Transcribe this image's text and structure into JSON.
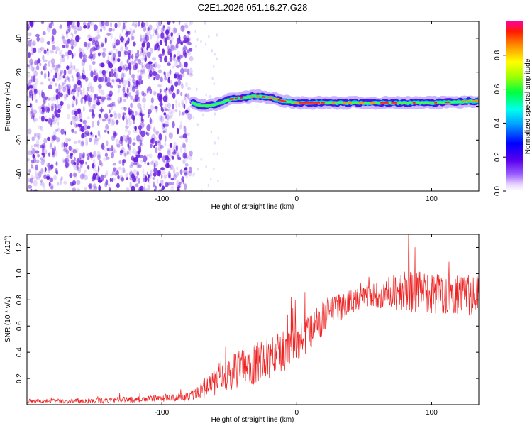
{
  "title": "C2E1.2026.051.16.27.G28",
  "colors": {
    "snr_line": "#ee2222",
    "spectro_dot": "#6a1fe0"
  },
  "chart_data": [
    {
      "type": "heatmap",
      "name": "spectrogram",
      "xlabel": "Height of straight line (km)",
      "ylabel": "Frequency (Hz)",
      "xlim": [
        -200,
        135
      ],
      "ylim": [
        -50,
        50
      ],
      "xticks": [
        -100,
        0,
        100
      ],
      "xtick_labels": [
        "-100",
        "0",
        "100"
      ],
      "yticks": [
        -40,
        -20,
        0,
        20,
        40
      ],
      "ytick_labels": [
        "-40",
        "-20",
        "0",
        "20",
        "40"
      ],
      "noise_region_km": [
        -200,
        -78
      ],
      "signal_trace": [
        {
          "x": -78,
          "y": 2
        },
        {
          "x": -70,
          "y": 0
        },
        {
          "x": -60,
          "y": 1
        },
        {
          "x": -50,
          "y": 4
        },
        {
          "x": -40,
          "y": 5
        },
        {
          "x": -30,
          "y": 6
        },
        {
          "x": -20,
          "y": 5
        },
        {
          "x": -10,
          "y": 3
        },
        {
          "x": 0,
          "y": 2
        },
        {
          "x": 20,
          "y": 2
        },
        {
          "x": 50,
          "y": 2
        },
        {
          "x": 80,
          "y": 2
        },
        {
          "x": 100,
          "y": 2
        },
        {
          "x": 135,
          "y": 3
        }
      ],
      "colorbar": {
        "label": "Normalized spectral amplitude",
        "ticks": [
          0.0,
          0.2,
          0.4,
          0.6,
          0.8
        ],
        "tick_labels": [
          "0.0",
          "0.2",
          "0.4",
          "0.6",
          "0.8"
        ],
        "range": [
          0,
          1
        ]
      }
    },
    {
      "type": "line",
      "name": "snr",
      "xlabel": "Height of straight line (km)",
      "ylabel": "SNR (10 * v/v)",
      "yscale_label": "(x10",
      "yscale_exponent": "4",
      "yscale_close": ")",
      "xlim": [
        -200,
        135
      ],
      "ylim": [
        0,
        1.3
      ],
      "xticks": [
        -100,
        0,
        100
      ],
      "xtick_labels": [
        "-100",
        "0",
        "100"
      ],
      "yticks": [
        0.2,
        0.4,
        0.6,
        0.8,
        1.0,
        1.2
      ],
      "ytick_labels": [
        "0.2",
        "0.4",
        "0.6",
        "0.8",
        "1.0",
        "1.2"
      ],
      "series": [
        {
          "name": "SNR",
          "envelope": [
            {
              "x": -200,
              "y": 0.03
            },
            {
              "x": -150,
              "y": 0.03
            },
            {
              "x": -100,
              "y": 0.05
            },
            {
              "x": -80,
              "y": 0.06
            },
            {
              "x": -70,
              "y": 0.12
            },
            {
              "x": -60,
              "y": 0.2
            },
            {
              "x": -45,
              "y": 0.28
            },
            {
              "x": -30,
              "y": 0.33
            },
            {
              "x": -15,
              "y": 0.4
            },
            {
              "x": 0,
              "y": 0.48
            },
            {
              "x": 15,
              "y": 0.62
            },
            {
              "x": 30,
              "y": 0.75
            },
            {
              "x": 50,
              "y": 0.84
            },
            {
              "x": 70,
              "y": 0.87
            },
            {
              "x": 90,
              "y": 0.88
            },
            {
              "x": 110,
              "y": 0.86
            },
            {
              "x": 135,
              "y": 0.84
            }
          ],
          "spread": [
            {
              "x": -200,
              "y": 0.02
            },
            {
              "x": -100,
              "y": 0.03
            },
            {
              "x": -75,
              "y": 0.05
            },
            {
              "x": -60,
              "y": 0.15
            },
            {
              "x": -30,
              "y": 0.2
            },
            {
              "x": 0,
              "y": 0.2
            },
            {
              "x": 50,
              "y": 0.1
            },
            {
              "x": 80,
              "y": 0.2
            },
            {
              "x": 135,
              "y": 0.2
            }
          ],
          "peak": {
            "x": 83,
            "y": 1.3
          }
        }
      ]
    }
  ]
}
